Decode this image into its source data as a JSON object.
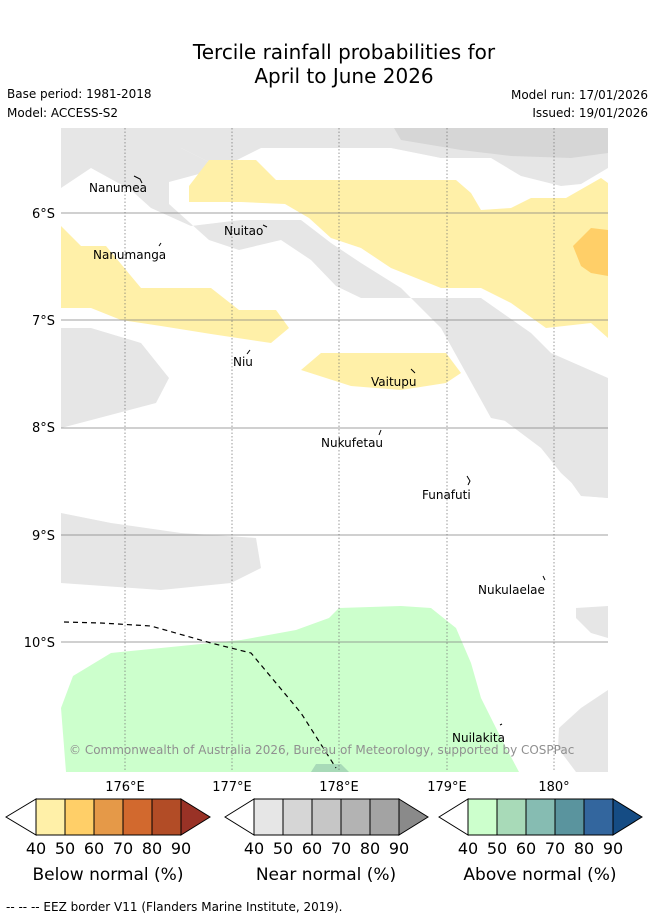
{
  "title_line1": "Tercile rainfall probabilities for",
  "title_line2": "April to June 2026",
  "base_period": "Base period: 1981-2018",
  "model": "Model: ACCESS-S2",
  "model_run": "Model run: 17/01/2026",
  "issued": "Issued: 19/01/2026",
  "copyright": "© Commonwealth of Australia 2026, Bureau of Meteorology, supported by COSPPac",
  "footer": "--  --  -- EEZ border V11 (Flanders Marine Institute, 2019).",
  "lat_labels": [
    "6°S",
    "7°S",
    "8°S",
    "9°S",
    "10°S"
  ],
  "lon_labels": [
    "176°E",
    "177°E",
    "178°E",
    "179°E",
    "180°"
  ],
  "islands": [
    "Nanumea",
    "Nuitao",
    "Nanumanga",
    "Niu",
    "Vaitupu",
    "Nukufetau",
    "Funafuti",
    "Nukulaelae",
    "Nuilakita"
  ],
  "colors": {
    "below": [
      "#fff0a8",
      "#ffcf68",
      "#e59948",
      "#d2692e",
      "#b24c26",
      "#993226"
    ],
    "near": [
      "#e6e6e6",
      "#d6d6d6",
      "#c6c6c6",
      "#b3b3b3",
      "#a3a3a3",
      "#8a8a8a"
    ],
    "above": [
      "#ccffcc",
      "#a8dab8",
      "#86bcb2",
      "#5a949e",
      "#33669e",
      "#154c84"
    ]
  },
  "legends": [
    {
      "title": "Below normal (%)",
      "ticks": [
        "40",
        "50",
        "60",
        "70",
        "80",
        "90"
      ]
    },
    {
      "title": "Near normal (%)",
      "ticks": [
        "40",
        "50",
        "60",
        "70",
        "80",
        "90"
      ]
    },
    {
      "title": "Above normal (%)",
      "ticks": [
        "40",
        "50",
        "60",
        "70",
        "80",
        "90"
      ]
    }
  ]
}
